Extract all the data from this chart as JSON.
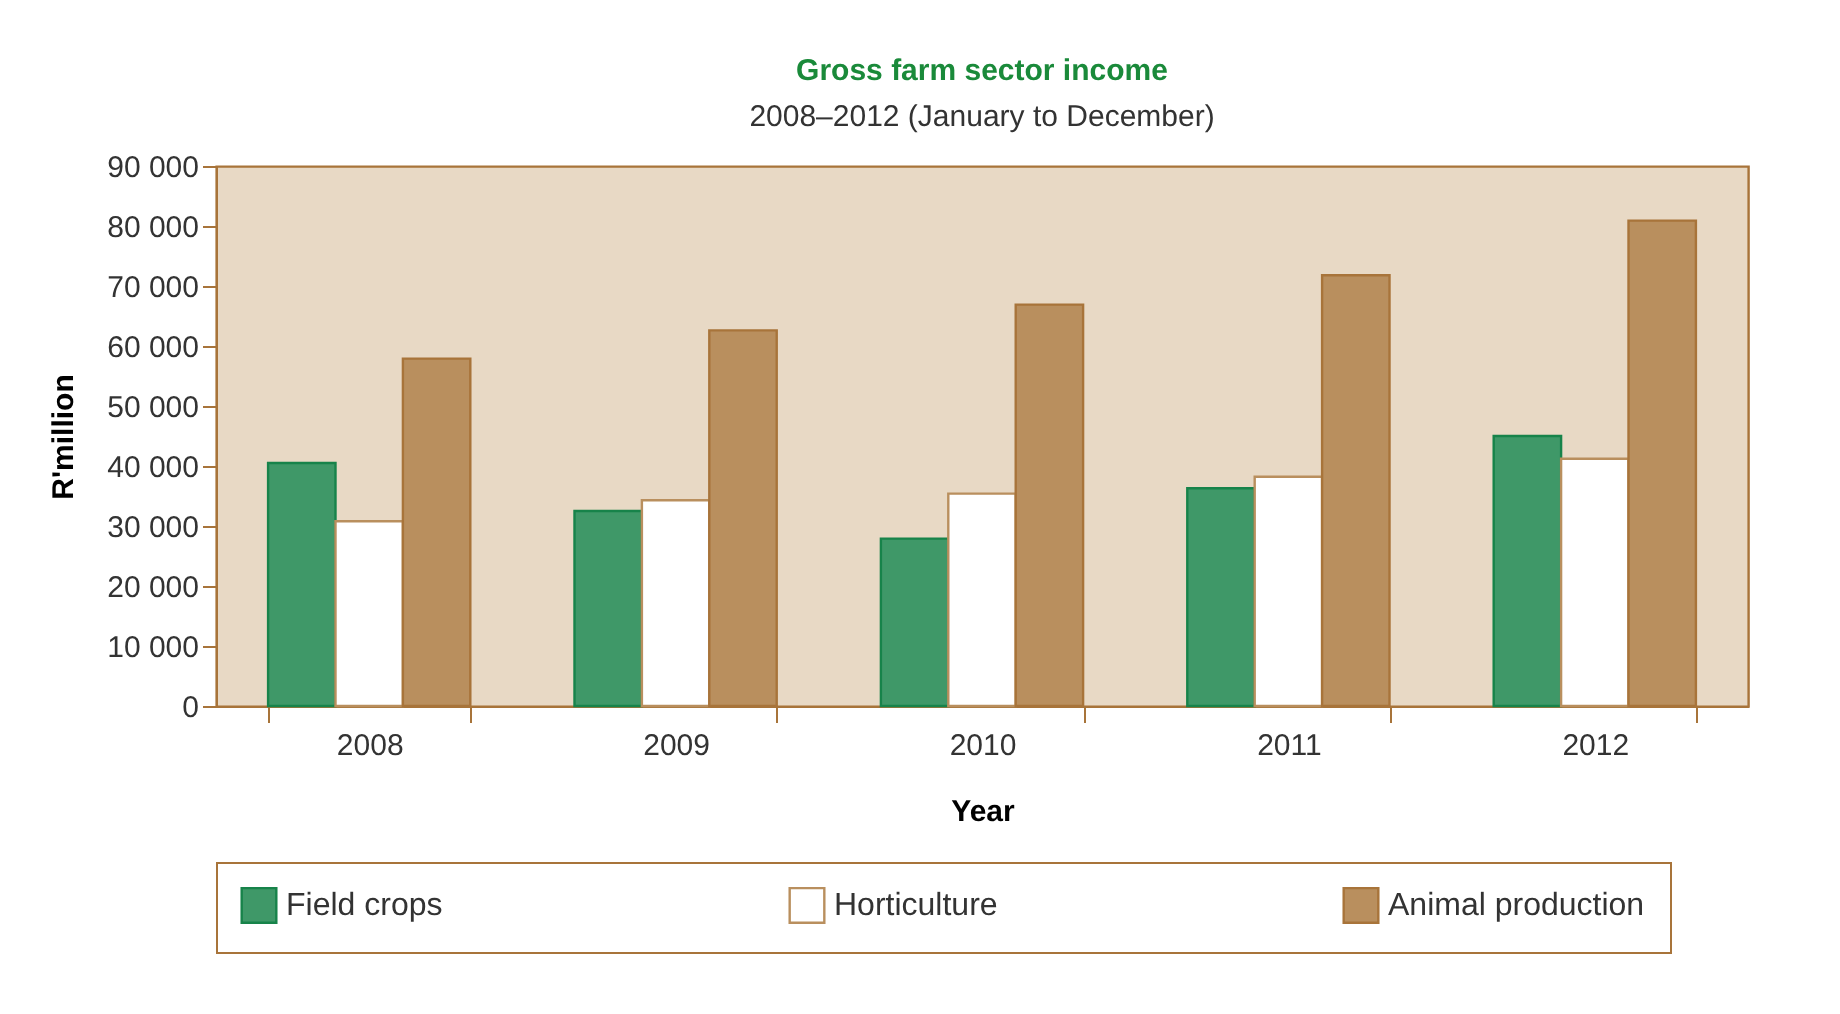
{
  "chart_data": {
    "type": "bar",
    "title": "Gross farm sector income",
    "subtitle": "2008–2012 (January to December)",
    "xlabel": "Year",
    "ylabel": "R'million",
    "categories": [
      "2008",
      "2009",
      "2010",
      "2011",
      "2012"
    ],
    "series": [
      {
        "name": "Field crops",
        "color": "#3f9868",
        "values": [
          40500,
          32500,
          27900,
          36300,
          45000
        ]
      },
      {
        "name": "Horticulture",
        "color": "#ffffff",
        "values": [
          30800,
          34300,
          35400,
          38200,
          41200
        ]
      },
      {
        "name": "Animal production",
        "color": "#b98f5e",
        "values": [
          57900,
          62600,
          66900,
          71800,
          80900
        ]
      }
    ],
    "ylim": [
      0,
      90000
    ],
    "yticks": [
      {
        "value": 0,
        "label": "0"
      },
      {
        "value": 10000,
        "label": "10 000"
      },
      {
        "value": 20000,
        "label": "20 000"
      },
      {
        "value": 30000,
        "label": "30 000"
      },
      {
        "value": 40000,
        "label": "40 000"
      },
      {
        "value": 50000,
        "label": "50 000"
      },
      {
        "value": 60000,
        "label": "60 000"
      },
      {
        "value": 70000,
        "label": "70 000"
      },
      {
        "value": 80000,
        "label": "80 000"
      },
      {
        "value": 90000,
        "label": "90 000"
      }
    ],
    "grid": false,
    "legend": "bottom"
  }
}
